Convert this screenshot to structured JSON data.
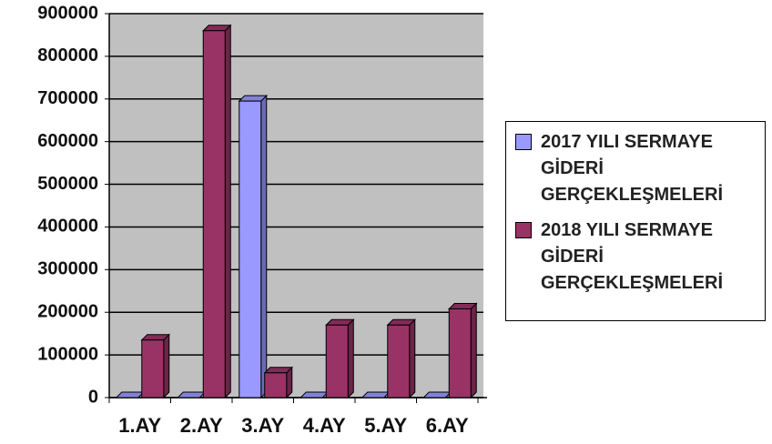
{
  "chart_data": {
    "type": "bar",
    "categories": [
      "1.AY",
      "2.AY",
      "3.AY",
      "4.AY",
      "5.AY",
      "6.AY"
    ],
    "series": [
      {
        "name": "2017 YILI SERMAYE GİDERİ GERÇEKLEŞMELERİ",
        "color": "#9999ff",
        "values": [
          0,
          0,
          695000,
          0,
          0,
          0
        ]
      },
      {
        "name": "2018 YILI SERMAYE GİDERİ GERÇEKLEŞMELERİ",
        "color": "#993366",
        "values": [
          135000,
          860000,
          58000,
          170000,
          170000,
          208000
        ]
      }
    ],
    "ylim": [
      0,
      900000
    ],
    "yticks": [
      0,
      100000,
      200000,
      300000,
      400000,
      500000,
      600000,
      700000,
      800000,
      900000
    ],
    "grid": true,
    "legend": "right"
  }
}
